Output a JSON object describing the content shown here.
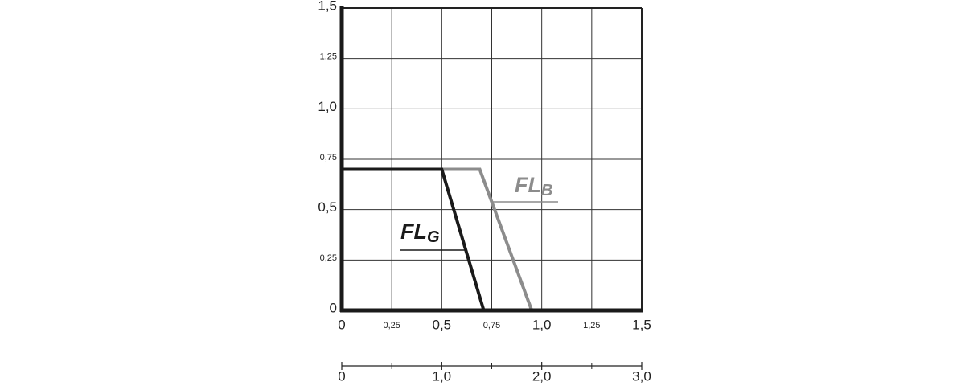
{
  "chart_data": {
    "type": "line",
    "xlim": [
      0,
      1.5
    ],
    "xticks": [
      0,
      {
        "value": 0.25,
        "label": "0,25"
      },
      {
        "value": 0.5,
        "label": "0,5"
      },
      {
        "value": 0.75,
        "label": "0,75"
      },
      {
        "value": 1.0,
        "label": "1,0"
      },
      {
        "value": 1.25,
        "label": "1,25"
      },
      {
        "value": 1.5,
        "label": "1,5"
      }
    ],
    "ylim": [
      0,
      1.5
    ],
    "yticks": [
      0,
      {
        "value": 0.25,
        "label": "0,25"
      },
      {
        "value": 0.5,
        "label": "0,5"
      },
      {
        "value": 0.75,
        "label": "0,75"
      },
      {
        "value": 1.0,
        "label": "1,0"
      },
      {
        "value": 1.25,
        "label": "1,25"
      },
      {
        "value": 1.5,
        "label": "1,5"
      }
    ],
    "x2lim": [
      0,
      3.0
    ],
    "x2ticks": [
      0,
      {
        "value": 1.0,
        "label": "1,0"
      },
      {
        "value": 2.0,
        "label": "2,0"
      },
      {
        "value": 3.0,
        "label": "3,0"
      }
    ],
    "x2minorticks": [
      0.5,
      1.5,
      2.5
    ],
    "grid": true,
    "series": [
      {
        "name": "FL",
        "subscript": "B",
        "color": "#8c8c8c",
        "x": [
          0,
          0.69,
          0.95
        ],
        "values": [
          0.7,
          0.7,
          0
        ]
      },
      {
        "name": "FL",
        "subscript": "G",
        "color": "#1a1a1a",
        "x": [
          0,
          0.5,
          0.71
        ],
        "values": [
          0.7,
          0.7,
          0
        ]
      }
    ]
  }
}
